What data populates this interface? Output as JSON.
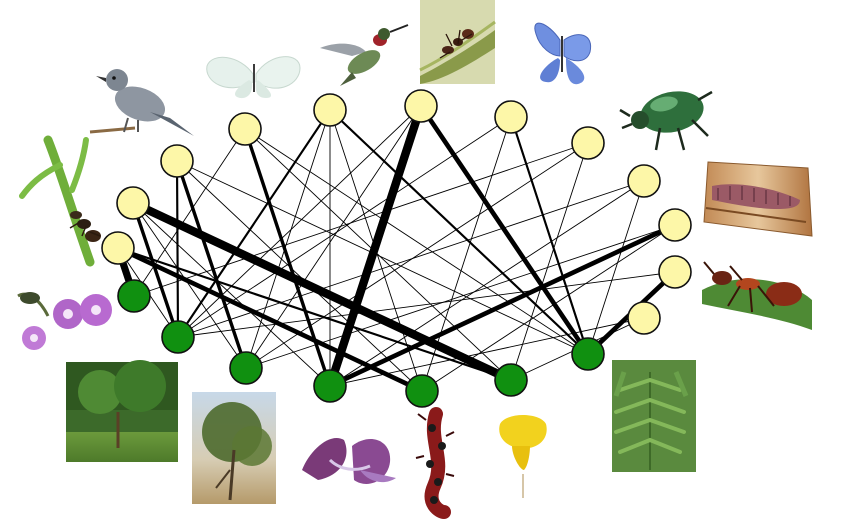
{
  "network": {
    "animals": [
      {
        "id": "a1",
        "icon": "ant-on-stem-photo"
      },
      {
        "id": "a2",
        "icon": "gray-bird-photo"
      },
      {
        "id": "a3",
        "icon": "white-butterfly-photo"
      },
      {
        "id": "a4",
        "icon": "hummingbird-photo"
      },
      {
        "id": "a5",
        "icon": "ant-on-stem-closeup-photo"
      },
      {
        "id": "a6",
        "icon": "blue-butterfly-photo"
      },
      {
        "id": "a7",
        "icon": "green-beetle-photo"
      },
      {
        "id": "a8",
        "icon": "larva-in-wood-photo"
      },
      {
        "id": "a9",
        "icon": "red-ant-photo"
      },
      {
        "id": "a10",
        "icon": "animal-node"
      },
      {
        "id": "a11",
        "icon": "animal-node"
      },
      {
        "id": "a12",
        "icon": "animal-node"
      }
    ],
    "plants": [
      {
        "id": "p1",
        "icon": "purple-flowers-photo"
      },
      {
        "id": "p2",
        "icon": "shrub-habitat-photo"
      },
      {
        "id": "p3",
        "icon": "tree-habitat-photo"
      },
      {
        "id": "p4",
        "icon": "purple-flower-closeup-photo"
      },
      {
        "id": "p5",
        "icon": "red-seed-pod-photo"
      },
      {
        "id": "p6",
        "icon": "yellow-flower-photo"
      },
      {
        "id": "p7",
        "icon": "fern-leaf-plant-photo"
      }
    ],
    "links": [
      [
        "a1",
        "p1",
        6
      ],
      [
        "a1",
        "p5",
        4
      ],
      [
        "a1",
        "p6",
        2
      ],
      [
        "a1",
        "p2",
        1
      ],
      [
        "a2",
        "p2",
        3
      ],
      [
        "a2",
        "p6",
        7
      ],
      [
        "a2",
        "p4",
        1
      ],
      [
        "a2",
        "p3",
        1
      ],
      [
        "a3",
        "p2",
        2
      ],
      [
        "a3",
        "p3",
        3
      ],
      [
        "a3",
        "p5",
        1
      ],
      [
        "a3",
        "p7",
        1
      ],
      [
        "a4",
        "p4",
        3
      ],
      [
        "a4",
        "p6",
        1
      ],
      [
        "a4",
        "p1",
        1
      ],
      [
        "a4",
        "p7",
        1
      ],
      [
        "a5",
        "p7",
        2
      ],
      [
        "a5",
        "p2",
        2
      ],
      [
        "a5",
        "p3",
        1
      ],
      [
        "a5",
        "p4",
        1
      ],
      [
        "a5",
        "p5",
        1
      ],
      [
        "a6",
        "p4",
        7
      ],
      [
        "a6",
        "p7",
        4
      ],
      [
        "a6",
        "p3",
        1
      ],
      [
        "a6",
        "p2",
        1
      ],
      [
        "a7",
        "p7",
        2
      ],
      [
        "a7",
        "p5",
        1
      ],
      [
        "a7",
        "p2",
        1
      ],
      [
        "a8",
        "p3",
        1
      ],
      [
        "a8",
        "p6",
        1
      ],
      [
        "a8",
        "p1",
        1
      ],
      [
        "a9",
        "p7",
        1
      ],
      [
        "a9",
        "p4",
        1
      ],
      [
        "a9",
        "p2",
        1
      ],
      [
        "a10",
        "p4",
        4
      ],
      [
        "a10",
        "p5",
        1
      ],
      [
        "a10",
        "p3",
        1
      ],
      [
        "a11",
        "p7",
        4
      ],
      [
        "a11",
        "p2",
        1
      ],
      [
        "a12",
        "p6",
        1
      ],
      [
        "a12",
        "p4",
        1
      ]
    ]
  }
}
